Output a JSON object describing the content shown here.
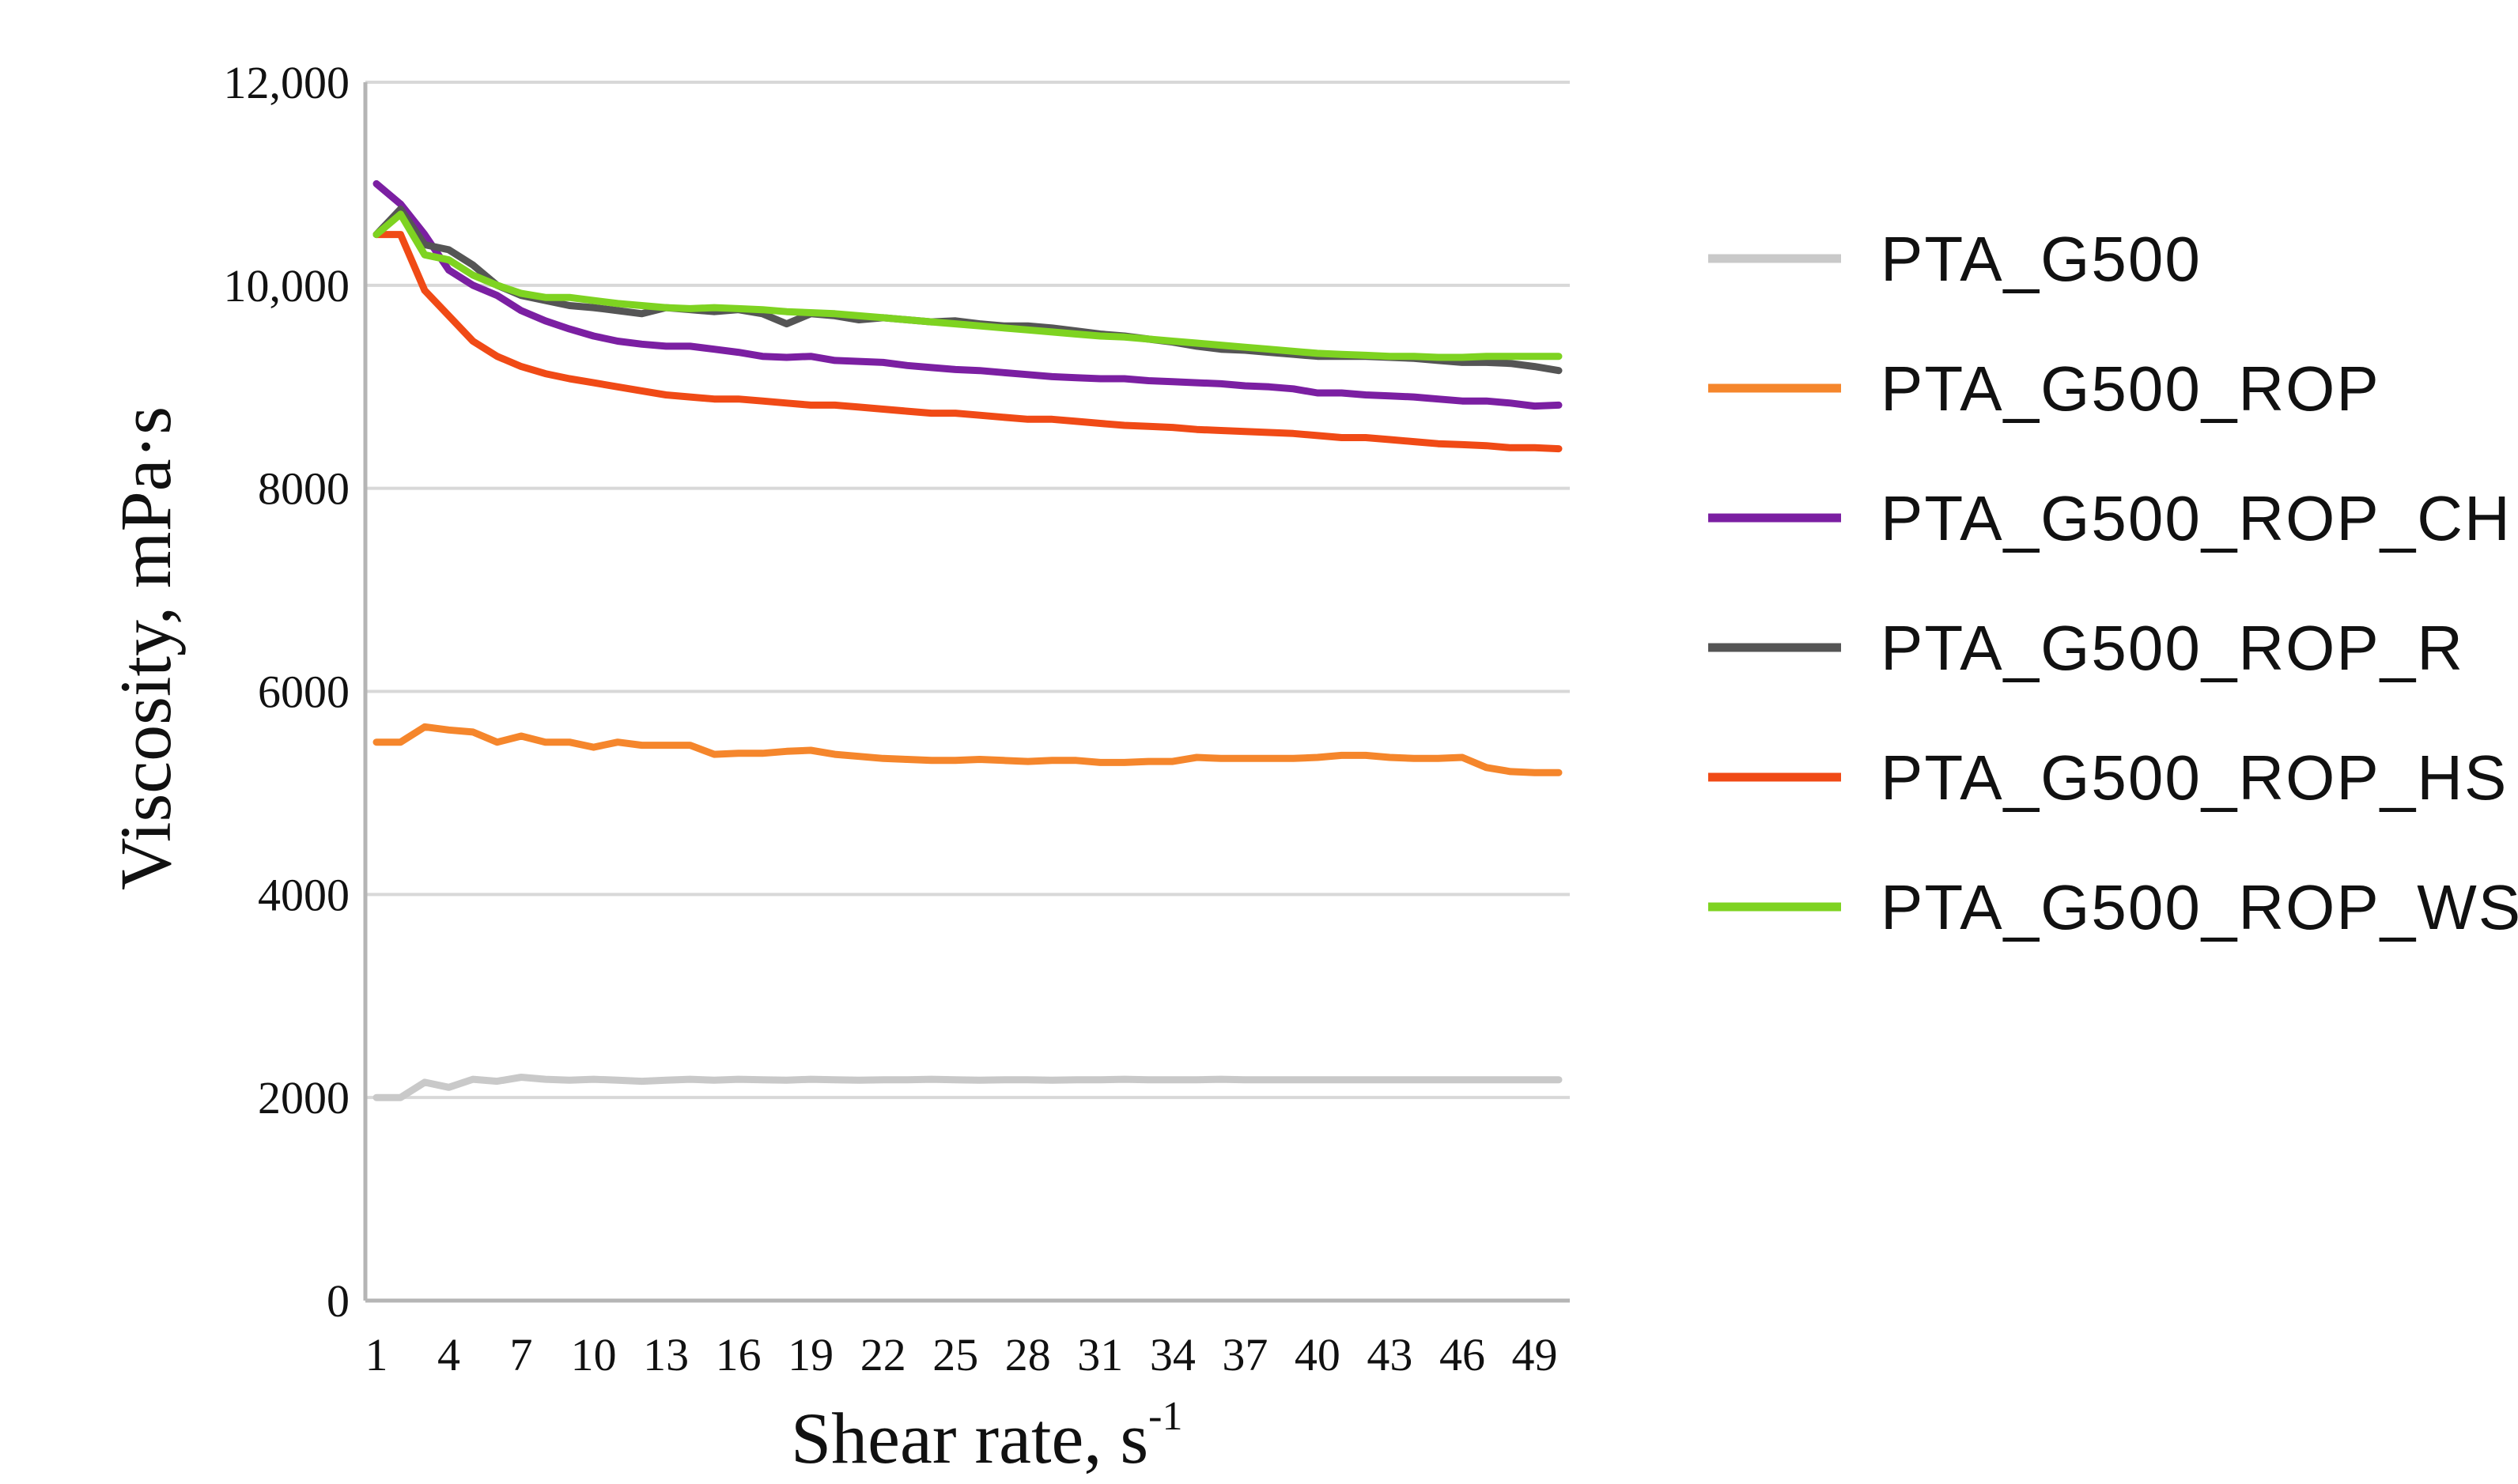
{
  "chart_data": {
    "type": "line",
    "title": "",
    "xlabel": "Shear rate, s",
    "xlabel_sup": "-1",
    "ylabel": "Viscosity, mPa·s",
    "ylim": [
      0,
      12000
    ],
    "xlim": [
      1,
      50
    ],
    "grid": true,
    "legend_position": "right",
    "y_ticks": [
      0,
      2000,
      4000,
      6000,
      8000,
      10000,
      12000
    ],
    "y_tick_labels": [
      "0",
      "2000",
      "4000",
      "6000",
      "8000",
      "10,000",
      "12,000"
    ],
    "x_ticks": [
      1,
      4,
      7,
      10,
      13,
      16,
      19,
      22,
      25,
      28,
      31,
      34,
      37,
      40,
      43,
      46,
      49
    ],
    "x_tick_labels": [
      "1",
      "4",
      "7",
      "10",
      "13",
      "16",
      "19",
      "22",
      "25",
      "28",
      "31",
      "34",
      "37",
      "40",
      "43",
      "46",
      "49"
    ],
    "x": [
      1,
      2,
      3,
      4,
      5,
      6,
      7,
      8,
      9,
      10,
      11,
      12,
      13,
      14,
      15,
      16,
      17,
      18,
      19,
      20,
      21,
      22,
      23,
      24,
      25,
      26,
      27,
      28,
      29,
      30,
      31,
      32,
      33,
      34,
      35,
      36,
      37,
      38,
      39,
      40,
      41,
      42,
      43,
      44,
      45,
      46,
      47,
      48,
      49,
      50
    ],
    "series": [
      {
        "name": "PTA_G500",
        "color": "#c9c9c9",
        "values": [
          2000,
          2000,
          2150,
          2100,
          2180,
          2160,
          2200,
          2180,
          2170,
          2180,
          2170,
          2160,
          2170,
          2180,
          2170,
          2180,
          2175,
          2170,
          2180,
          2175,
          2170,
          2175,
          2175,
          2180,
          2175,
          2170,
          2175,
          2175,
          2170,
          2175,
          2175,
          2180,
          2175,
          2175,
          2175,
          2180,
          2175,
          2175,
          2175,
          2175,
          2175,
          2175,
          2175,
          2175,
          2175,
          2175,
          2175,
          2175,
          2175,
          2175
        ]
      },
      {
        "name": "PTA_G500_ROP",
        "color": "#f5862c",
        "values": [
          5500,
          5500,
          5650,
          5620,
          5600,
          5500,
          5560,
          5500,
          5500,
          5450,
          5500,
          5470,
          5470,
          5470,
          5380,
          5390,
          5390,
          5410,
          5420,
          5380,
          5360,
          5340,
          5330,
          5320,
          5320,
          5330,
          5320,
          5310,
          5320,
          5320,
          5300,
          5300,
          5310,
          5310,
          5350,
          5340,
          5340,
          5340,
          5340,
          5350,
          5370,
          5370,
          5350,
          5340,
          5340,
          5350,
          5250,
          5210,
          5200,
          5200
        ]
      },
      {
        "name": "PTA_G500_ROP_CH",
        "color": "#7b1fa2",
        "values": [
          11000,
          10800,
          10500,
          10150,
          10000,
          9900,
          9750,
          9650,
          9570,
          9500,
          9450,
          9420,
          9400,
          9400,
          9370,
          9340,
          9300,
          9290,
          9300,
          9260,
          9250,
          9240,
          9210,
          9190,
          9170,
          9160,
          9140,
          9120,
          9100,
          9090,
          9080,
          9080,
          9060,
          9050,
          9040,
          9030,
          9010,
          9000,
          8980,
          8940,
          8940,
          8920,
          8910,
          8900,
          8880,
          8860,
          8860,
          8840,
          8810,
          8820
        ]
      },
      {
        "name": "PTA_G500_ROP_R",
        "color": "#555555",
        "values": [
          10500,
          10750,
          10400,
          10350,
          10200,
          10000,
          9900,
          9850,
          9800,
          9780,
          9750,
          9720,
          9780,
          9760,
          9740,
          9760,
          9720,
          9620,
          9720,
          9700,
          9660,
          9680,
          9660,
          9640,
          9650,
          9620,
          9600,
          9600,
          9580,
          9550,
          9520,
          9500,
          9470,
          9440,
          9400,
          9370,
          9360,
          9340,
          9320,
          9300,
          9300,
          9300,
          9290,
          9280,
          9260,
          9240,
          9240,
          9230,
          9200,
          9160
        ]
      },
      {
        "name": "PTA_G500_ROP_HS",
        "color": "#f04a16",
        "values": [
          10500,
          10500,
          9950,
          9700,
          9450,
          9300,
          9200,
          9130,
          9080,
          9040,
          9000,
          8960,
          8920,
          8900,
          8880,
          8880,
          8860,
          8840,
          8820,
          8820,
          8800,
          8780,
          8760,
          8740,
          8740,
          8720,
          8700,
          8680,
          8680,
          8660,
          8640,
          8620,
          8610,
          8600,
          8580,
          8570,
          8560,
          8550,
          8540,
          8520,
          8500,
          8500,
          8480,
          8460,
          8440,
          8430,
          8420,
          8400,
          8400,
          8390
        ]
      },
      {
        "name": "PTA_G500_ROP_WS",
        "color": "#7ed321",
        "values": [
          10500,
          10700,
          10300,
          10250,
          10100,
          10000,
          9920,
          9880,
          9880,
          9850,
          9820,
          9800,
          9780,
          9770,
          9780,
          9770,
          9760,
          9740,
          9730,
          9720,
          9700,
          9680,
          9660,
          9640,
          9620,
          9600,
          9580,
          9560,
          9540,
          9520,
          9500,
          9490,
          9470,
          9450,
          9430,
          9410,
          9390,
          9370,
          9350,
          9330,
          9320,
          9310,
          9300,
          9300,
          9290,
          9290,
          9300,
          9300,
          9300,
          9300
        ]
      }
    ]
  }
}
